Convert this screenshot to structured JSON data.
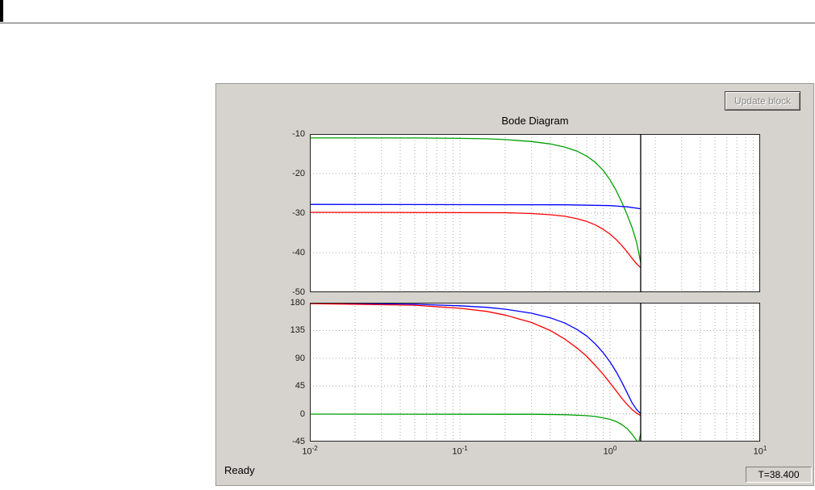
{
  "window": {
    "background": "#ffffff",
    "panel_color": "#d6d3ce"
  },
  "panel": {
    "update_button_label": "Update block"
  },
  "status": {
    "left": "Ready",
    "time": "T=38.400"
  },
  "chart_data": {
    "type": "line",
    "title": "Bode Diagram",
    "x_scale": "log",
    "xlim": [
      0.01,
      10
    ],
    "grid": true,
    "legend": "none",
    "cursor_x": 1.6,
    "cursor_color": "#000000",
    "grid_color": "#a8a8a8",
    "x_ticks": [
      {
        "base": "10",
        "exp": "-2",
        "value": 0.01
      },
      {
        "base": "10",
        "exp": "-1",
        "value": 0.1
      },
      {
        "base": "10",
        "exp": "0",
        "value": 1
      },
      {
        "base": "10",
        "exp": "1",
        "value": 10
      }
    ],
    "subplots": [
      {
        "name": "magnitude",
        "ylim": [
          -50,
          -10
        ],
        "yticks": [
          -10,
          -20,
          -30,
          -40,
          -50
        ],
        "series": [
          {
            "name": "green",
            "color": "#00a000",
            "points": [
              [
                0.01,
                -11
              ],
              [
                0.05,
                -11
              ],
              [
                0.1,
                -11.1
              ],
              [
                0.15,
                -11.2
              ],
              [
                0.2,
                -11.4
              ],
              [
                0.3,
                -11.9
              ],
              [
                0.4,
                -12.5
              ],
              [
                0.5,
                -13.3
              ],
              [
                0.6,
                -14.3
              ],
              [
                0.7,
                -15.6
              ],
              [
                0.8,
                -17.2
              ],
              [
                0.9,
                -19.2
              ],
              [
                1.0,
                -21.6
              ],
              [
                1.1,
                -24.3
              ],
              [
                1.2,
                -27.3
              ],
              [
                1.3,
                -30.4
              ],
              [
                1.4,
                -33.6
              ],
              [
                1.5,
                -37.3
              ],
              [
                1.6,
                -42.5
              ]
            ]
          },
          {
            "name": "blue",
            "color": "#0000ff",
            "points": [
              [
                0.01,
                -27.8
              ],
              [
                0.5,
                -27.9
              ],
              [
                1.0,
                -28.1
              ],
              [
                1.3,
                -28.4
              ],
              [
                1.6,
                -28.9
              ]
            ]
          },
          {
            "name": "red",
            "color": "#ff0000",
            "points": [
              [
                0.01,
                -29.8
              ],
              [
                0.2,
                -29.9
              ],
              [
                0.3,
                -30.1
              ],
              [
                0.4,
                -30.4
              ],
              [
                0.5,
                -30.8
              ],
              [
                0.6,
                -31.4
              ],
              [
                0.7,
                -32.1
              ],
              [
                0.8,
                -33.0
              ],
              [
                0.9,
                -34.1
              ],
              [
                1.0,
                -35.3
              ],
              [
                1.1,
                -36.7
              ],
              [
                1.2,
                -38.2
              ],
              [
                1.3,
                -39.8
              ],
              [
                1.4,
                -41.4
              ],
              [
                1.5,
                -42.8
              ],
              [
                1.6,
                -43.8
              ]
            ]
          }
        ]
      },
      {
        "name": "phase",
        "ylim": [
          -45,
          180
        ],
        "yticks": [
          180,
          135,
          90,
          45,
          0,
          -45
        ],
        "series": [
          {
            "name": "green",
            "color": "#00a000",
            "points": [
              [
                0.01,
                -0.5
              ],
              [
                0.3,
                -0.8
              ],
              [
                0.5,
                -1.5
              ],
              [
                0.7,
                -3
              ],
              [
                0.8,
                -4.5
              ],
              [
                0.9,
                -6.5
              ],
              [
                1.0,
                -9
              ],
              [
                1.1,
                -12.5
              ],
              [
                1.2,
                -17.5
              ],
              [
                1.3,
                -24
              ],
              [
                1.4,
                -33
              ],
              [
                1.47,
                -40
              ],
              [
                1.52,
                -45
              ],
              [
                1.56,
                -44
              ],
              [
                1.6,
                -32
              ]
            ]
          },
          {
            "name": "blue",
            "color": "#0000ff",
            "points": [
              [
                0.01,
                179
              ],
              [
                0.05,
                177.5
              ],
              [
                0.1,
                175
              ],
              [
                0.15,
                172.5
              ],
              [
                0.2,
                169.5
              ],
              [
                0.3,
                163
              ],
              [
                0.4,
                155.5
              ],
              [
                0.5,
                147
              ],
              [
                0.6,
                137
              ],
              [
                0.7,
                126
              ],
              [
                0.8,
                113
              ],
              [
                0.9,
                99
              ],
              [
                1.0,
                84
              ],
              [
                1.1,
                68
              ],
              [
                1.2,
                51
              ],
              [
                1.3,
                34
              ],
              [
                1.4,
                18
              ],
              [
                1.5,
                7
              ],
              [
                1.6,
                0
              ]
            ]
          },
          {
            "name": "red",
            "color": "#ff0000",
            "points": [
              [
                0.01,
                178.5
              ],
              [
                0.05,
                176
              ],
              [
                0.1,
                171
              ],
              [
                0.15,
                166
              ],
              [
                0.2,
                160
              ],
              [
                0.3,
                148
              ],
              [
                0.4,
                135
              ],
              [
                0.5,
                121
              ],
              [
                0.6,
                107
              ],
              [
                0.7,
                93
              ],
              [
                0.8,
                78
              ],
              [
                0.9,
                64
              ],
              [
                1.0,
                50
              ],
              [
                1.1,
                37
              ],
              [
                1.2,
                25
              ],
              [
                1.3,
                15
              ],
              [
                1.4,
                7
              ],
              [
                1.5,
                1
              ],
              [
                1.6,
                -3
              ]
            ]
          }
        ]
      }
    ]
  }
}
